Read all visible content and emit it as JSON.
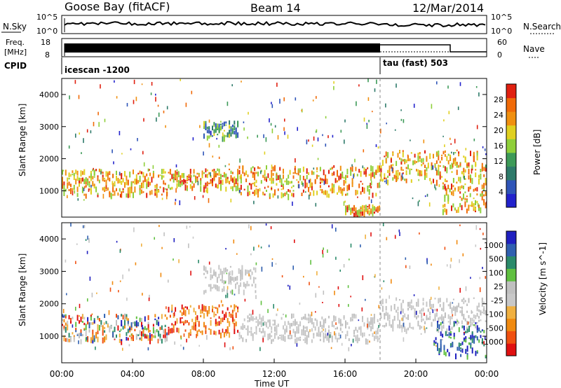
{
  "header": {
    "station": "Goose Bay (fitACF)",
    "beam": "Beam 14",
    "date": "12/Mar/2014"
  },
  "top_panels": {
    "nsky_label": "N.Sky",
    "nsky_ticks": [
      "10^5",
      "10^0"
    ],
    "nsearch_label": "N.Search",
    "nsearch_ticks": [
      "10^5",
      "10^0"
    ],
    "freq_label_1": "Freq.",
    "freq_label_2": "[MHz]",
    "freq_ticks": [
      "18",
      "8"
    ],
    "nave_label": "Nave",
    "nave_ticks": [
      "60",
      "0"
    ],
    "cpid_label": "CPID",
    "cpid_segments": [
      {
        "name": "icescan -1200",
        "start_h": 0,
        "end_h": 18
      },
      {
        "name": "tau (fast) 503",
        "start_h": 18,
        "end_h": 24
      }
    ]
  },
  "chart_data": [
    {
      "type": "heatmap",
      "panel": "power",
      "ylabel": "Slant Range [km]",
      "yticks": [
        "4000",
        "3000",
        "2000",
        "1000"
      ],
      "ylim": [
        180,
        4500
      ],
      "xlim": [
        0,
        24
      ],
      "colorbar_label": "Power [dB]",
      "colorbar_ticks": [
        "28",
        "24",
        "20",
        "16",
        "12",
        "8",
        "4"
      ],
      "colorbar_range": [
        0,
        30
      ],
      "colorscale": [
        "#2222cc",
        "#2f55b8",
        "#2e7a6a",
        "#3d9a58",
        "#8fcf3a",
        "#e0d020",
        "#f09010",
        "#f06a08",
        "#e02010"
      ],
      "mode_change_h": 18,
      "echo_bands": [
        {
          "from_h": 0,
          "to_h": 6,
          "range_km": [
            900,
            1700
          ],
          "level": "high"
        },
        {
          "from_h": 6,
          "to_h": 10,
          "range_km": [
            1100,
            1700
          ],
          "level": "high"
        },
        {
          "from_h": 8,
          "to_h": 10,
          "range_km": [
            2700,
            3200
          ],
          "level": "low"
        },
        {
          "from_h": 10,
          "to_h": 18,
          "range_km": [
            900,
            1800
          ],
          "level": "high"
        },
        {
          "from_h": 16,
          "to_h": 18,
          "range_km": [
            300,
            600
          ],
          "level": "high"
        },
        {
          "from_h": 18,
          "to_h": 24,
          "range_km": [
            1300,
            2300
          ],
          "level": "high"
        },
        {
          "from_h": 21.5,
          "to_h": 24,
          "range_km": [
            400,
            1300
          ],
          "level": "high"
        }
      ]
    },
    {
      "type": "heatmap",
      "panel": "velocity",
      "ylabel": "Slant Range [km]",
      "yticks": [
        "4000",
        "3000",
        "2000",
        "1000"
      ],
      "ylim": [
        180,
        4500
      ],
      "xlim": [
        0,
        24
      ],
      "xlabel": "Time UT",
      "xticks": [
        "00:00",
        "04:00",
        "08:00",
        "12:00",
        "16:00",
        "20:00",
        "00:00"
      ],
      "colorbar_label": "Velocity [m s^-1]",
      "colorbar_ticks": [
        "1000",
        "500",
        "100",
        "25",
        "-25",
        "-100",
        "-500",
        "-1000"
      ],
      "colorscale": [
        "#e01010",
        "#f05010",
        "#f08a10",
        "#f0b040",
        "#c8c8c8",
        "#c0c0c0",
        "#60c040",
        "#2a8a6a",
        "#3060b0",
        "#2020c0"
      ],
      "mode_change_h": 18,
      "echo_bands": [
        {
          "from_h": 0,
          "to_h": 6,
          "range_km": [
            900,
            1700
          ],
          "velocity": "mixed"
        },
        {
          "from_h": 6,
          "to_h": 10,
          "range_km": [
            1100,
            2000
          ],
          "velocity": "negative"
        },
        {
          "from_h": 8,
          "to_h": 11,
          "range_km": [
            2400,
            3200
          ],
          "velocity": "near zero"
        },
        {
          "from_h": 10,
          "to_h": 18,
          "range_km": [
            900,
            1700
          ],
          "velocity": "near zero"
        },
        {
          "from_h": 18,
          "to_h": 24,
          "range_km": [
            1200,
            2200
          ],
          "velocity": "near zero"
        },
        {
          "from_h": 21,
          "to_h": 24,
          "range_km": [
            400,
            1500
          ],
          "velocity": "positive"
        }
      ]
    }
  ]
}
